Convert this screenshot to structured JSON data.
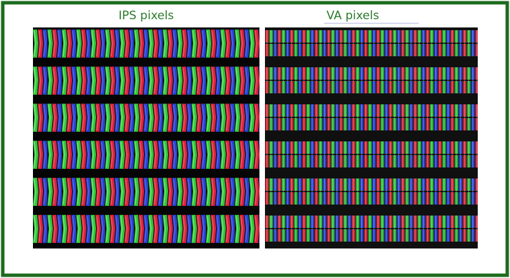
{
  "panels": [
    {
      "label": "IPS pixels"
    },
    {
      "label": "VA pixels"
    }
  ]
}
